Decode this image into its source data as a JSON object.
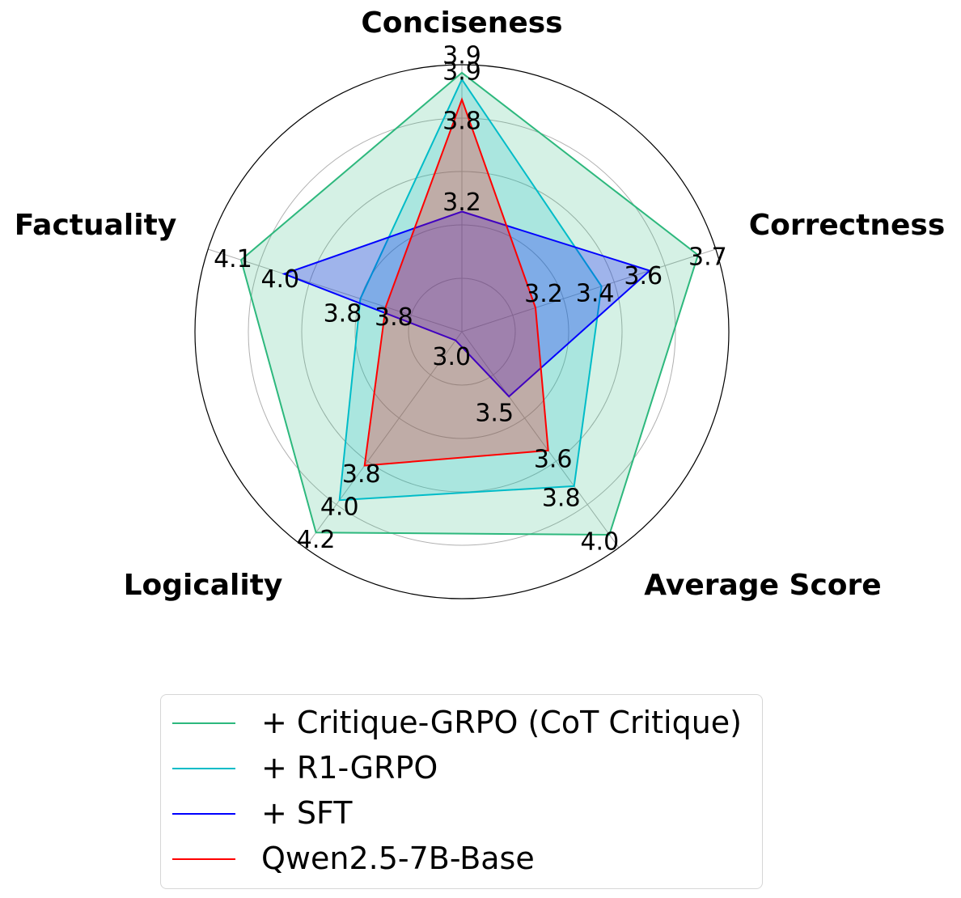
{
  "chart_data": {
    "type": "radar",
    "axes": [
      "Conciseness",
      "Correctness",
      "Average Score",
      "Logicality",
      "Factuality"
    ],
    "grid": true,
    "legend_position": "bottom",
    "series": [
      {
        "name": "+ Critique-GRPO (CoT Critique)",
        "color": "#2db87d",
        "values": [
          3.9,
          3.7,
          4.0,
          4.2,
          4.1
        ],
        "labels": [
          "3.9",
          "3.7",
          "4.0",
          "4.2",
          "4.1"
        ]
      },
      {
        "name": "+ R1-GRPO",
        "color": "#00bcc8",
        "values": [
          3.9,
          3.4,
          3.8,
          4.0,
          3.8
        ],
        "labels": [
          "3.9",
          "3.4",
          "3.8",
          "4.0",
          "3.8"
        ]
      },
      {
        "name": "+ SFT",
        "color": "#0000ff",
        "values": [
          3.2,
          3.6,
          3.5,
          3.0,
          4.0
        ],
        "labels": [
          "3.2",
          "3.6",
          "3.5",
          "3.0",
          "4.0"
        ]
      },
      {
        "name": "Qwen2.5-7B-Base",
        "color": "#ff0000",
        "values": [
          3.8,
          3.2,
          3.6,
          3.8,
          3.8
        ],
        "labels": [
          "3.8",
          "3.2",
          "3.6",
          "3.8",
          "3.8"
        ]
      }
    ]
  }
}
